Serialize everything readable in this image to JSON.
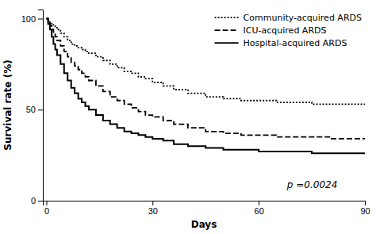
{
  "chart_data": {
    "type": "step",
    "xlabel": "Days",
    "ylabel": "Survival rate (%)",
    "xlim": [
      -1,
      90
    ],
    "ylim": [
      0,
      105
    ],
    "xticks": [
      0,
      30,
      60,
      90
    ],
    "yticks": [
      0,
      50,
      100
    ],
    "legend": "upper right",
    "annotations": [
      {
        "text": "p =0.0024",
        "x": 68,
        "y": 7
      }
    ],
    "x": [
      0,
      0.5,
      1,
      1.5,
      2,
      2.5,
      3,
      4,
      5,
      6,
      7,
      8,
      9,
      10,
      11,
      12,
      14,
      16,
      18,
      20,
      22,
      24,
      26,
      28,
      30,
      33,
      36,
      40,
      45,
      50,
      55,
      60,
      65,
      70,
      75,
      80,
      85,
      90
    ],
    "series": [
      {
        "name": "Community-acquired ARDS",
        "color": "#000000",
        "line_style": "dotted",
        "values": [
          100,
          99,
          98,
          97,
          96,
          95,
          94,
          92,
          90,
          88,
          86,
          85,
          84,
          83,
          82,
          81,
          79,
          77,
          75,
          73,
          71,
          70,
          68,
          67,
          65,
          63,
          61,
          59,
          57,
          56,
          55,
          55,
          54,
          54,
          53,
          53,
          53,
          53
        ]
      },
      {
        "name": "ICU-acquired ARDS",
        "color": "#000000",
        "line_style": "dashed",
        "values": [
          100,
          98,
          96,
          94,
          92,
          90,
          88,
          85,
          82,
          79,
          76,
          74,
          72,
          70,
          68,
          66,
          63,
          60,
          57,
          55,
          53,
          51,
          49,
          47,
          46,
          44,
          42,
          40,
          38,
          37,
          36,
          36,
          35,
          35,
          35,
          34,
          34,
          34
        ]
      },
      {
        "name": "Hospital-acquired ARDS",
        "color": "#000000",
        "line_style": "solid",
        "values": [
          100,
          97,
          94,
          90,
          86,
          83,
          80,
          75,
          70,
          66,
          62,
          59,
          56,
          54,
          52,
          50,
          47,
          44,
          42,
          40,
          38,
          37,
          36,
          35,
          34,
          33,
          31,
          30,
          29,
          28,
          28,
          27,
          27,
          27,
          26,
          26,
          26,
          26
        ]
      }
    ]
  }
}
